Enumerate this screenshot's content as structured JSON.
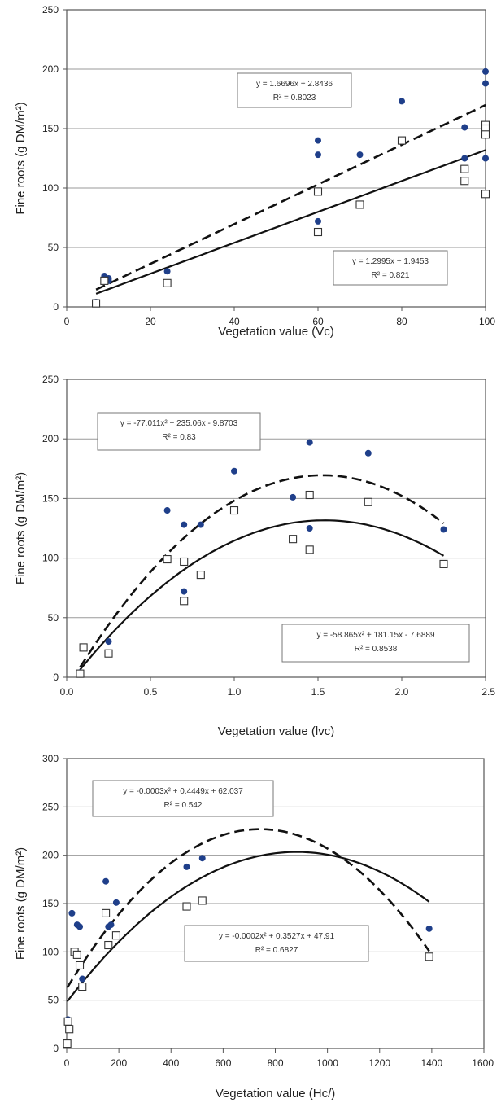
{
  "chart_data": [
    {
      "type": "scatter",
      "xlabel": "Vegetation value (Vc)",
      "ylabel": "Fine roots (g DM/m²)",
      "xlim": [
        0,
        100
      ],
      "ylim": [
        0,
        250
      ],
      "xticks": [
        "0",
        "20",
        "40",
        "60",
        "80",
        "100"
      ],
      "yticks": [
        "0",
        "50",
        "100",
        "150",
        "200",
        "250"
      ],
      "grid": "horizontal",
      "series": [
        {
          "marker": "filled-circle",
          "color": "#1f3f8a",
          "x": [
            7,
            7,
            9,
            10,
            10,
            24,
            60,
            60,
            60,
            60,
            70,
            80,
            95,
            95,
            100,
            100,
            100
          ],
          "y": [
            4,
            3,
            26,
            24,
            22,
            30,
            140,
            128,
            72,
            97,
            128,
            173,
            151,
            125,
            198,
            188,
            125
          ]
        },
        {
          "marker": "open-square",
          "color": "#333333",
          "x": [
            7,
            9,
            24,
            60,
            60,
            70,
            80,
            95,
            95,
            100,
            100,
            100,
            100
          ],
          "y": [
            3,
            22,
            20,
            97,
            63,
            86,
            140,
            116,
            106,
            153,
            150,
            145,
            95
          ]
        },
        {
          "kind": "fit",
          "style": "dashed",
          "fit": "linear",
          "coef": [
            1.6696,
            2.8436
          ]
        },
        {
          "kind": "fit",
          "style": "solid",
          "fit": "linear",
          "coef": [
            1.2995,
            1.9453
          ]
        }
      ],
      "annotations": [
        {
          "line1": "y = 1.6696x + 2.8436",
          "line2": "R² = 0.8023"
        },
        {
          "line1": "y = 1.2995x + 1.9453",
          "line2": "R² = 0.821"
        }
      ]
    },
    {
      "type": "scatter",
      "xlabel": "Vegetation value (lvc)",
      "ylabel": "Fine roots (g DM/m²)",
      "xlim": [
        0,
        2.5
      ],
      "ylim": [
        0,
        250
      ],
      "xticks": [
        "0.0",
        "0.5",
        "1.0",
        "1.5",
        "2.0",
        "2.5"
      ],
      "yticks": [
        "0",
        "50",
        "100",
        "150",
        "200",
        "250"
      ],
      "grid": "horizontal",
      "series": [
        {
          "marker": "filled-circle",
          "color": "#1f3f8a",
          "x": [
            0.08,
            0.25,
            0.6,
            0.7,
            0.7,
            0.8,
            1.0,
            1.35,
            1.45,
            1.45,
            1.8,
            2.25
          ],
          "y": [
            4,
            30,
            140,
            128,
            72,
            128,
            173,
            151,
            197,
            125,
            188,
            124
          ]
        },
        {
          "marker": "open-square",
          "color": "#333333",
          "x": [
            0.08,
            0.1,
            0.25,
            0.6,
            0.7,
            0.7,
            0.8,
            1.0,
            1.35,
            1.45,
            1.45,
            1.8,
            2.25
          ],
          "y": [
            3,
            25,
            20,
            99,
            97,
            64,
            86,
            140,
            116,
            153,
            107,
            147,
            95
          ]
        },
        {
          "kind": "fit",
          "style": "dashed",
          "fit": "quadratic",
          "coef": [
            -77.011,
            235.06,
            -9.8703
          ]
        },
        {
          "kind": "fit",
          "style": "solid",
          "fit": "quadratic",
          "coef": [
            -58.865,
            181.15,
            -7.6889
          ]
        }
      ],
      "annotations": [
        {
          "line1": "y = -77.011x² + 235.06x - 9.8703",
          "line2": "R² = 0.83"
        },
        {
          "line1": "y = -58.865x² + 181.15x - 7.6889",
          "line2": "R² = 0.8538"
        }
      ]
    },
    {
      "type": "scatter",
      "xlabel": "Vegetation value (Hc/)",
      "ylabel": "Fine roots (g DM/m²)",
      "xlim": [
        0,
        1600
      ],
      "ylim": [
        0,
        300
      ],
      "xticks": [
        "0",
        "200",
        "400",
        "600",
        "800",
        "1000",
        "1200",
        "1400",
        "1600"
      ],
      "yticks": [
        "0",
        "50",
        "100",
        "150",
        "200",
        "250",
        "300"
      ],
      "grid": "horizontal",
      "series": [
        {
          "marker": "filled-circle",
          "color": "#1f3f8a",
          "x": [
            2,
            5,
            20,
            30,
            40,
            50,
            60,
            150,
            160,
            170,
            190,
            460,
            520,
            1390
          ],
          "y": [
            27,
            30,
            140,
            100,
            128,
            126,
            72,
            173,
            126,
            128,
            151,
            188,
            197,
            124
          ]
        },
        {
          "marker": "open-square",
          "color": "#333333",
          "x": [
            2,
            5,
            10,
            30,
            40,
            50,
            60,
            150,
            160,
            190,
            460,
            520,
            1390
          ],
          "y": [
            5,
            28,
            20,
            100,
            97,
            86,
            64,
            140,
            107,
            117,
            147,
            153,
            95
          ]
        },
        {
          "kind": "fit",
          "style": "dashed",
          "fit": "quadratic",
          "coef": [
            -0.0003,
            0.4449,
            62.037
          ]
        },
        {
          "kind": "fit",
          "style": "solid",
          "fit": "quadratic",
          "coef": [
            -0.0002,
            0.3527,
            47.91
          ]
        }
      ],
      "annotations": [
        {
          "line1": "y = -0.0003x² + 0.4449x + 62.037",
          "line2": "R² = 0.542"
        },
        {
          "line1": "y = -0.0002x² + 0.3527x + 47.91",
          "line2": "R² = 0.6827"
        }
      ]
    }
  ]
}
